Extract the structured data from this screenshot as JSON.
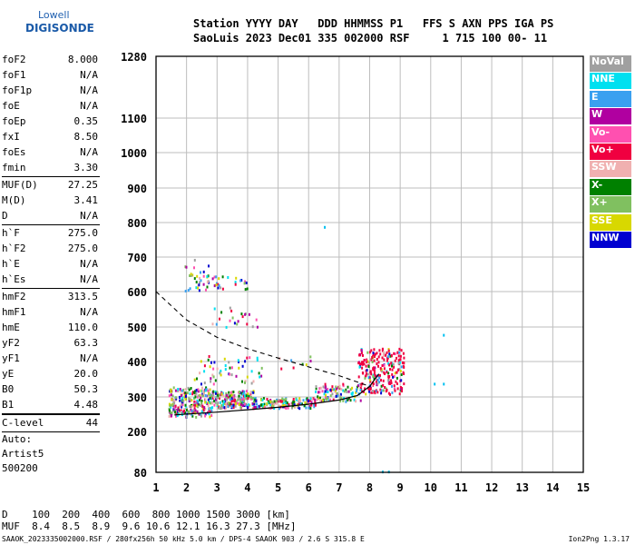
{
  "logo": {
    "line1": "Lowell",
    "line2": "DIGISONDE"
  },
  "header": {
    "line1": "Station YYYY DAY   DDD HHMMSS P1   FFS S AXN PPS IGA PS",
    "line2": "SaoLuis 2023 Dec01 335 002000 RSF     1 715 100 00- 11"
  },
  "params": {
    "g1": [
      {
        "k": "foF2",
        "v": "8.000"
      },
      {
        "k": "foF1",
        "v": "N/A"
      },
      {
        "k": "foF1p",
        "v": "N/A"
      },
      {
        "k": "foE",
        "v": "N/A"
      },
      {
        "k": "foEp",
        "v": "0.35"
      },
      {
        "k": "fxI",
        "v": "8.50"
      },
      {
        "k": "foEs",
        "v": "N/A"
      },
      {
        "k": "fmin",
        "v": "3.30"
      }
    ],
    "g2": [
      {
        "k": "MUF(D)",
        "v": "27.25"
      },
      {
        "k": "M(D)",
        "v": "3.41"
      },
      {
        "k": "D",
        "v": "N/A"
      }
    ],
    "g3": [
      {
        "k": "h`F",
        "v": "275.0"
      },
      {
        "k": "h`F2",
        "v": "275.0"
      },
      {
        "k": "h`E",
        "v": "N/A"
      },
      {
        "k": "h`Es",
        "v": "N/A"
      }
    ],
    "g4": [
      {
        "k": "hmF2",
        "v": "313.5"
      },
      {
        "k": "hmF1",
        "v": "N/A"
      },
      {
        "k": "hmE",
        "v": "110.0"
      },
      {
        "k": "yF2",
        "v": "63.3"
      },
      {
        "k": "yF1",
        "v": "N/A"
      },
      {
        "k": "yE",
        "v": "20.0"
      },
      {
        "k": "B0",
        "v": "50.3"
      },
      {
        "k": "B1",
        "v": "4.48"
      }
    ],
    "clevel": {
      "k": "C-level",
      "v": "44"
    },
    "auto": [
      "Auto:",
      "Artist5",
      "500200"
    ]
  },
  "legend": [
    {
      "label": "NoVal",
      "color": "#a0a0a0"
    },
    {
      "label": "NNE",
      "color": "#00e0f0"
    },
    {
      "label": "E",
      "color": "#3aa0f0"
    },
    {
      "label": "W",
      "color": "#b000a0"
    },
    {
      "label": "Vo-",
      "color": "#ff50b0"
    },
    {
      "label": "Vo+",
      "color": "#f00040"
    },
    {
      "label": "SSW",
      "color": "#f0b0b0"
    },
    {
      "label": "X-",
      "color": "#008000"
    },
    {
      "label": "X+",
      "color": "#80c060"
    },
    {
      "label": "SSE",
      "color": "#d8d800"
    },
    {
      "label": "NNW",
      "color": "#0000d0"
    }
  ],
  "footer": {
    "d_line": "D    100  200  400  600  800 1000 1500 3000 [km]",
    "muf_line": "MUF  8.4  8.5  8.9  9.6 10.6 12.1 16.3 27.3 [MHz]"
  },
  "filebar": {
    "left": "SAAOK_2023335002000.RSF / 280fx256h 50 kHz 5.0 km / DPS-4 SAAOK 903 / 2.6 S 315.8 E",
    "right": "Ion2Png 1.3.17"
  },
  "chart_data": {
    "type": "scatter",
    "xlim": [
      1,
      15
    ],
    "xticks": [
      1,
      2,
      3,
      4,
      5,
      6,
      7,
      8,
      9,
      10,
      11,
      12,
      13,
      14,
      15
    ],
    "ylim": [
      80,
      1280
    ],
    "ylabels": [
      80,
      200,
      300,
      400,
      500,
      600,
      700,
      800,
      900,
      1000,
      1100,
      1280
    ],
    "grid": true,
    "trace_curve": [
      [
        1.6,
        248
      ],
      [
        3,
        256
      ],
      [
        4,
        263
      ],
      [
        5,
        270
      ],
      [
        6,
        279
      ],
      [
        7,
        291
      ],
      [
        7.6,
        304
      ],
      [
        8,
        330
      ],
      [
        8.3,
        365
      ]
    ],
    "profile_curve": [
      [
        1.0,
        600
      ],
      [
        2,
        520
      ],
      [
        3,
        470
      ],
      [
        4,
        437
      ],
      [
        5,
        410
      ],
      [
        6,
        385
      ],
      [
        7,
        360
      ],
      [
        8,
        330
      ]
    ],
    "echo_clusters": [
      {
        "x": [
          1.4,
          2.8
        ],
        "y": [
          245,
          330
        ],
        "n": 260
      },
      {
        "x": [
          2.8,
          4.2
        ],
        "y": [
          270,
          320
        ],
        "n": 200
      },
      {
        "x": [
          4.2,
          6.2
        ],
        "y": [
          270,
          300
        ],
        "n": 150
      },
      {
        "x": [
          6.2,
          7.7
        ],
        "y": [
          290,
          340
        ],
        "n": 110
      },
      {
        "x": [
          7.6,
          9.1
        ],
        "y": [
          310,
          440
        ],
        "n": 250
      },
      {
        "x": [
          1.9,
          2.7
        ],
        "y": [
          600,
          700
        ],
        "n": 30
      },
      {
        "x": [
          2.5,
          4.0
        ],
        "y": [
          610,
          650
        ],
        "n": 30
      },
      {
        "x": [
          2.8,
          4.3
        ],
        "y": [
          500,
          560
        ],
        "n": 22
      },
      {
        "x": [
          2.2,
          4.5
        ],
        "y": [
          340,
          420
        ],
        "n": 55
      },
      {
        "x": [
          5,
          6.5
        ],
        "y": [
          380,
          420
        ],
        "n": 8
      }
    ],
    "isolated_points": [
      [
        6.5,
        790
      ],
      [
        8.4,
        85
      ],
      [
        8.6,
        85
      ],
      [
        10.4,
        480
      ],
      [
        10.4,
        340
      ],
      [
        10.1,
        340
      ]
    ]
  }
}
